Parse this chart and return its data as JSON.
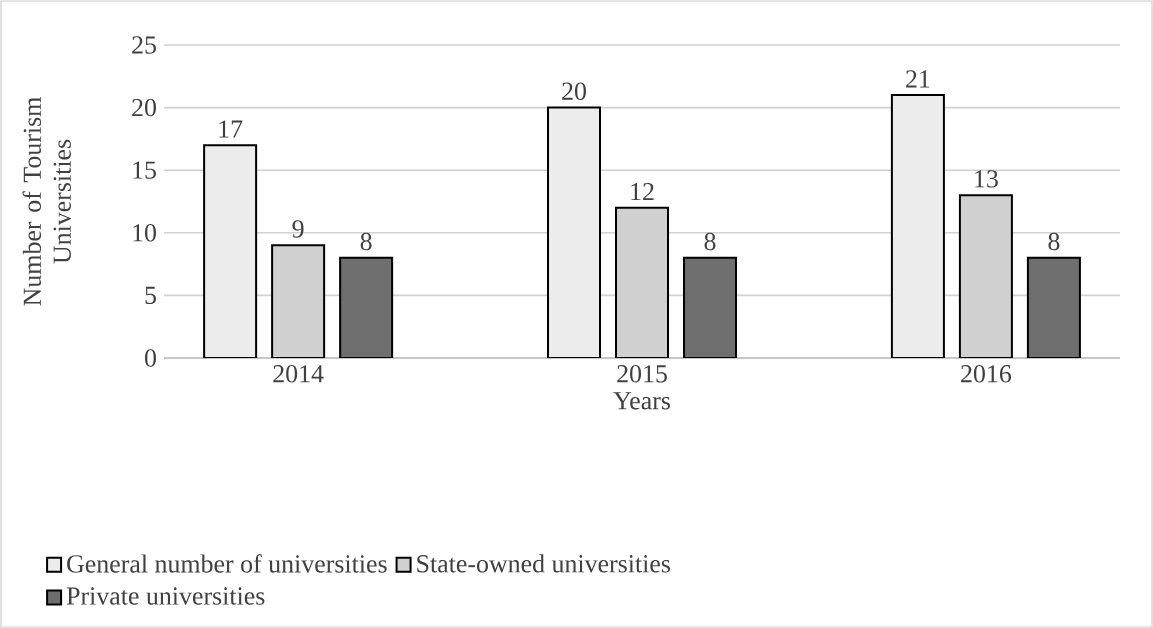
{
  "chart_data": {
    "type": "bar",
    "xlabel": "Years",
    "ylabel": "Number of Tourism Universities",
    "categories": [
      "2014",
      "2015",
      "2016"
    ],
    "series": [
      {
        "name": "General number of universities",
        "color": "#ececec",
        "values": [
          17,
          20,
          21
        ]
      },
      {
        "name": "State-owned universities",
        "color": "#d0d0d0",
        "values": [
          9,
          12,
          13
        ]
      },
      {
        "name": "Private universities",
        "color": "#6e6e6e",
        "values": [
          8,
          8,
          8
        ]
      }
    ],
    "ylim": [
      0,
      25
    ],
    "yticks": [
      0,
      5,
      10,
      15,
      20,
      25
    ],
    "grid": "y",
    "legend": "bottom",
    "data_labels": true
  }
}
